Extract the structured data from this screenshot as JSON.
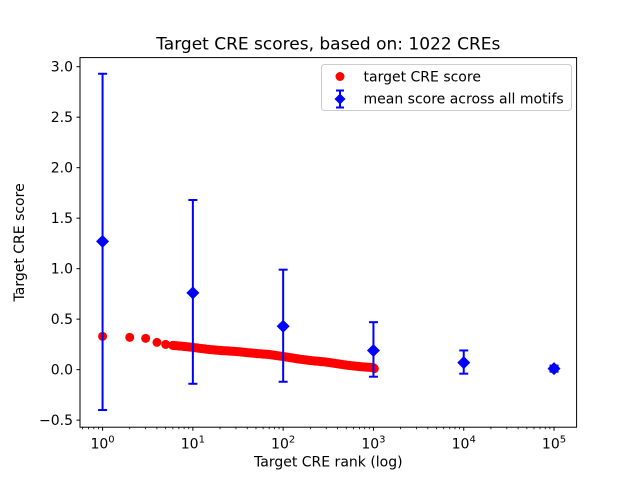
{
  "chart_data": {
    "type": "scatter",
    "title": "Target CRE scores, based on: 1022 CREs",
    "xlabel": "Target CRE rank (log)",
    "ylabel": "Target CRE score",
    "x_scale": "log",
    "xlim_log10": [
      -0.25,
      5.25
    ],
    "ylim": [
      -0.57,
      3.09
    ],
    "grid": false,
    "background_color": "#ffffff",
    "axis_color": "#000000",
    "x_tick_exponents": [
      0,
      1,
      2,
      3,
      4,
      5
    ],
    "x_tick_labels": [
      "10⁰",
      "10¹",
      "10²",
      "10³",
      "10⁴",
      "10⁵"
    ],
    "y_tick_values": [
      -0.5,
      0.0,
      0.5,
      1.0,
      1.5,
      2.0,
      2.5,
      3.0
    ],
    "y_tick_labels": [
      "−0.5",
      "0.0",
      "0.5",
      "1.0",
      "1.5",
      "2.0",
      "2.5",
      "3.0"
    ],
    "legend": {
      "position": "upper right",
      "border_color": "#cccccc",
      "background_color": "#ffffff"
    },
    "series": [
      {
        "name": "target CRE score",
        "color": "#ff0000",
        "marker": "circle",
        "n_points": 1022,
        "points": {
          "rank": [
            1,
            2,
            3,
            4,
            5,
            6,
            8,
            10,
            15,
            20,
            30,
            50,
            70,
            100,
            150,
            200,
            300,
            500,
            700,
            1000,
            1022
          ],
          "score": [
            0.33,
            0.32,
            0.31,
            0.27,
            0.25,
            0.24,
            0.23,
            0.22,
            0.2,
            0.19,
            0.18,
            0.16,
            0.15,
            0.13,
            0.105,
            0.09,
            0.075,
            0.045,
            0.03,
            0.02,
            0.01
          ]
        }
      },
      {
        "name": "mean score across all motifs",
        "color": "#0000ff",
        "marker": "diamond",
        "error_bars": true,
        "x": [
          1,
          10,
          100,
          1000,
          10000,
          100000
        ],
        "y": [
          1.27,
          0.76,
          0.43,
          0.19,
          0.07,
          0.01
        ],
        "err_top": [
          2.93,
          1.68,
          0.99,
          0.47,
          0.19,
          0.04
        ],
        "err_bottom": [
          -0.4,
          -0.14,
          -0.12,
          -0.07,
          -0.04,
          -0.02
        ]
      }
    ]
  }
}
